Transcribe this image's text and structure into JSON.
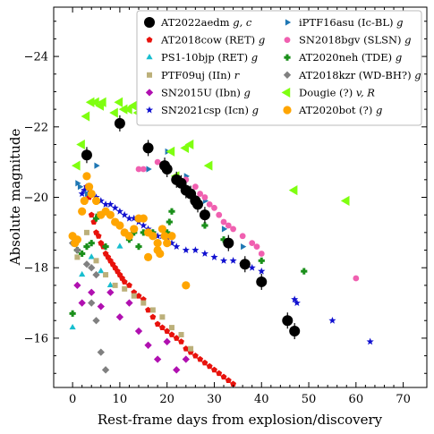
{
  "chart_data": {
    "type": "scatter",
    "title": "",
    "xlabel": "Rest-frame days from explosion/discovery",
    "ylabel": "Absolute magnitude",
    "xlim": [
      -4,
      75
    ],
    "ylim": [
      -14.6,
      -25.4
    ],
    "y_inverted": true,
    "xticks": [
      "0",
      "10",
      "20",
      "30",
      "40",
      "50",
      "60",
      "70"
    ],
    "yticks": [
      "−16",
      "−18",
      "−20",
      "−22",
      "−24"
    ],
    "grid": false,
    "legend_position": "top-right",
    "series": [
      {
        "name": "AT2018cow (RET) g",
        "color": "#e8120c",
        "marker": "pentagon",
        "points": [
          [
            3,
            -20.3
          ],
          [
            3.5,
            -20.0
          ],
          [
            4,
            -19.5
          ],
          [
            4.5,
            -19.3
          ],
          [
            5,
            -19.0
          ],
          [
            5.5,
            -18.9
          ],
          [
            6,
            -18.7
          ],
          [
            6.5,
            -18.6
          ],
          [
            7,
            -18.4
          ],
          [
            7.5,
            -18.3
          ],
          [
            8,
            -18.2
          ],
          [
            8.5,
            -18.1
          ],
          [
            9,
            -18.0
          ],
          [
            9.5,
            -17.9
          ],
          [
            10,
            -17.8
          ],
          [
            10.5,
            -17.7
          ],
          [
            11,
            -17.6
          ],
          [
            12,
            -17.5
          ],
          [
            13,
            -17.3
          ],
          [
            14,
            -17.2
          ],
          [
            15,
            -17.1
          ],
          [
            16,
            -16.8
          ],
          [
            17,
            -16.6
          ],
          [
            18,
            -16.4
          ],
          [
            19,
            -16.3
          ],
          [
            20,
            -16.2
          ],
          [
            21,
            -16.1
          ],
          [
            22,
            -16.0
          ],
          [
            23,
            -15.9
          ],
          [
            24,
            -15.7
          ],
          [
            25,
            -15.6
          ],
          [
            26,
            -15.5
          ],
          [
            27,
            -15.4
          ],
          [
            28,
            -15.3
          ],
          [
            29,
            -15.2
          ],
          [
            30,
            -15.1
          ],
          [
            31,
            -15.0
          ],
          [
            32,
            -14.9
          ],
          [
            33,
            -14.8
          ],
          [
            34,
            -14.7
          ]
        ]
      },
      {
        "name": "PS1-10bjp (RET) g",
        "color": "#17becf",
        "marker": "triangle-up",
        "points": [
          [
            0,
            -16.3
          ],
          [
            2,
            -17.8
          ],
          [
            4,
            -18.3
          ],
          [
            6,
            -17.9
          ],
          [
            8,
            -17.5
          ],
          [
            10,
            -18.6
          ]
        ]
      },
      {
        "name": "PTF09uj (IIn) r",
        "color": "#bcb07a",
        "marker": "square",
        "points": [
          [
            1,
            -18.3
          ],
          [
            3,
            -19.0
          ],
          [
            5,
            -18.2
          ],
          [
            7,
            -17.8
          ],
          [
            9,
            -17.5
          ],
          [
            11,
            -17.4
          ],
          [
            13,
            -17.2
          ],
          [
            15,
            -17.0
          ],
          [
            17,
            -16.8
          ],
          [
            19,
            -16.6
          ],
          [
            21,
            -16.3
          ],
          [
            23,
            -16.1
          ],
          [
            25,
            -15.7
          ]
        ]
      },
      {
        "name": "SN2015U (Ibn) g",
        "color": "#b010b0",
        "marker": "diamond",
        "points": [
          [
            1,
            -17.5
          ],
          [
            2,
            -17.0
          ],
          [
            4,
            -17.3
          ],
          [
            6,
            -16.9
          ],
          [
            8,
            -17.3
          ],
          [
            10,
            -16.6
          ],
          [
            12,
            -17.0
          ],
          [
            14,
            -16.2
          ],
          [
            16,
            -15.8
          ],
          [
            18,
            -15.4
          ],
          [
            20,
            -15.9
          ],
          [
            22,
            -15.1
          ],
          [
            24,
            -15.4
          ]
        ]
      },
      {
        "name": "SN2021csp (Icn) g",
        "color": "#1010d0",
        "marker": "star",
        "points": [
          [
            2,
            -20.1
          ],
          [
            2.5,
            -20.2
          ],
          [
            3,
            -20.3
          ],
          [
            3.5,
            -20.2
          ],
          [
            4,
            -20.1
          ],
          [
            5,
            -20.0
          ],
          [
            6,
            -19.9
          ],
          [
            7,
            -19.8
          ],
          [
            8,
            -19.8
          ],
          [
            9,
            -19.7
          ],
          [
            10,
            -19.6
          ],
          [
            11,
            -19.5
          ],
          [
            12,
            -19.4
          ],
          [
            13,
            -19.4
          ],
          [
            14,
            -19.3
          ],
          [
            15,
            -19.2
          ],
          [
            16,
            -19.1
          ],
          [
            17,
            -19.0
          ],
          [
            18,
            -18.9
          ],
          [
            19,
            -18.9
          ],
          [
            20,
            -18.8
          ],
          [
            21,
            -18.7
          ],
          [
            22,
            -18.6
          ],
          [
            24,
            -18.5
          ],
          [
            26,
            -18.5
          ],
          [
            28,
            -18.4
          ],
          [
            30,
            -18.3
          ],
          [
            32,
            -18.2
          ],
          [
            34,
            -18.2
          ],
          [
            36,
            -18.1
          ],
          [
            38,
            -18.0
          ],
          [
            40,
            -17.9
          ],
          [
            47,
            -17.1
          ],
          [
            47.5,
            -17.0
          ],
          [
            55,
            -16.5
          ],
          [
            63,
            -15.9
          ]
        ]
      },
      {
        "name": "iPTF16asu (Ic-BL) g",
        "color": "#1f77b4",
        "marker": "triangle-right",
        "points": [
          [
            1,
            -20.4
          ],
          [
            1.5,
            -20.3
          ],
          [
            3,
            -20.1
          ],
          [
            5,
            -20.9
          ],
          [
            8,
            -19.5
          ],
          [
            16,
            -20.8
          ],
          [
            20,
            -21.3
          ],
          [
            24,
            -20.6
          ],
          [
            28,
            -19.9
          ],
          [
            32,
            -19.1
          ],
          [
            36,
            -18.6
          ]
        ]
      },
      {
        "name": "SN2018bgv (SLSN) g",
        "color": "#f060b0",
        "marker": "circle",
        "points": [
          [
            14,
            -20.8
          ],
          [
            15,
            -20.8
          ],
          [
            18,
            -21.0
          ],
          [
            19,
            -20.9
          ],
          [
            20,
            -20.8
          ],
          [
            22,
            -20.6
          ],
          [
            24,
            -20.5
          ],
          [
            26,
            -20.3
          ],
          [
            27,
            -20.1
          ],
          [
            28,
            -20.0
          ],
          [
            29,
            -19.8
          ],
          [
            30,
            -19.7
          ],
          [
            31,
            -19.5
          ],
          [
            32,
            -19.3
          ],
          [
            33,
            -19.2
          ],
          [
            34,
            -19.1
          ],
          [
            36,
            -18.9
          ],
          [
            38,
            -18.7
          ],
          [
            39,
            -18.6
          ],
          [
            40,
            -18.4
          ],
          [
            60,
            -17.7
          ]
        ]
      },
      {
        "name": "AT2020neh (TDE) g",
        "color": "#1a8f1a",
        "marker": "plus",
        "points": [
          [
            0,
            -16.7
          ],
          [
            1,
            -18.5
          ],
          [
            2,
            -18.4
          ],
          [
            3,
            -18.6
          ],
          [
            4,
            -18.7
          ],
          [
            5,
            -19.4
          ],
          [
            5.5,
            -19.5
          ],
          [
            7,
            -18.6
          ],
          [
            12,
            -18.8
          ],
          [
            13,
            -19.0
          ],
          [
            14,
            -18.6
          ],
          [
            15,
            -19.0
          ],
          [
            17,
            -19.0
          ],
          [
            20,
            -19.0
          ],
          [
            20.5,
            -19.3
          ],
          [
            21,
            -19.6
          ],
          [
            28,
            -19.2
          ],
          [
            32,
            -18.8
          ],
          [
            33,
            -18.7
          ],
          [
            40,
            -18.2
          ],
          [
            49,
            -17.9
          ]
        ]
      },
      {
        "name": "AT2018kzr (WD-BH?) g",
        "color": "#808080",
        "marker": "diamond",
        "points": [
          [
            0,
            -18.7
          ],
          [
            1,
            -18.5
          ],
          [
            3,
            -18.1
          ],
          [
            4,
            -18.0
          ],
          [
            5,
            -17.8
          ],
          [
            4,
            -17.0
          ],
          [
            5,
            -16.5
          ],
          [
            6,
            -15.6
          ],
          [
            7,
            -15.1
          ]
        ]
      },
      {
        "name": "Dougie (?) v, R",
        "color": "#7fff10",
        "marker": "triangle-left",
        "points": [
          [
            1,
            -20.9
          ],
          [
            2,
            -21.5
          ],
          [
            3,
            -22.3
          ],
          [
            4,
            -22.7
          ],
          [
            5,
            -22.7
          ],
          [
            6,
            -22.6
          ],
          [
            6.5,
            -22.7
          ],
          [
            9,
            -22.4
          ],
          [
            10,
            -22.7
          ],
          [
            11,
            -22.5
          ],
          [
            12,
            -22.5
          ],
          [
            13,
            -22.6
          ],
          [
            14,
            -22.4
          ],
          [
            15,
            -22.2
          ],
          [
            16,
            -22.3
          ],
          [
            19,
            -22.6
          ],
          [
            20,
            -22.2
          ],
          [
            21,
            -21.3
          ],
          [
            22,
            -20.6
          ],
          [
            24,
            -21.4
          ],
          [
            25,
            -21.5
          ],
          [
            29,
            -20.9
          ],
          [
            47,
            -20.2
          ],
          [
            58,
            -19.9
          ]
        ]
      },
      {
        "name": "AT2020bot (?) g",
        "color": "#ffa500",
        "marker": "circle",
        "points": [
          [
            0,
            -18.9
          ],
          [
            0.5,
            -18.7
          ],
          [
            1,
            -18.8
          ],
          [
            2,
            -19.6
          ],
          [
            2.5,
            -19.9
          ],
          [
            3,
            -20.6
          ],
          [
            3.5,
            -20.3
          ],
          [
            4,
            -20.1
          ],
          [
            5,
            -19.9
          ],
          [
            6,
            -19.5
          ],
          [
            7,
            -19.6
          ],
          [
            8,
            -19.5
          ],
          [
            9,
            -19.3
          ],
          [
            10,
            -19.2
          ],
          [
            11,
            -19.0
          ],
          [
            12,
            -18.9
          ],
          [
            13,
            -19.1
          ],
          [
            14,
            -19.4
          ],
          [
            15,
            -19.4
          ],
          [
            16,
            -19.0
          ],
          [
            17,
            -18.9
          ],
          [
            18,
            -18.7
          ],
          [
            19,
            -19.1
          ],
          [
            19.5,
            -18.9
          ],
          [
            20,
            -18.7
          ],
          [
            21,
            -18.9
          ],
          [
            18,
            -18.5
          ],
          [
            18.5,
            -18.4
          ],
          [
            16,
            -18.3
          ],
          [
            24,
            -17.5
          ]
        ]
      },
      {
        "name": "AT2022aedm g, c",
        "color": "#000000",
        "marker": "circle-large",
        "points": [
          [
            3,
            -21.2
          ],
          [
            10,
            -22.1
          ],
          [
            16,
            -21.4
          ],
          [
            19.5,
            -20.9
          ],
          [
            20,
            -20.8
          ],
          [
            22,
            -20.5
          ],
          [
            23,
            -20.4
          ],
          [
            24,
            -20.2
          ],
          [
            25,
            -20.1
          ],
          [
            26,
            -19.9
          ],
          [
            26.5,
            -19.8
          ],
          [
            28,
            -19.5
          ],
          [
            33,
            -18.7
          ],
          [
            36.5,
            -18.1
          ],
          [
            40,
            -17.6
          ],
          [
            45.5,
            -16.5
          ],
          [
            47,
            -16.2
          ]
        ]
      }
    ],
    "legend_entries": [
      {
        "label": "AT2022aedm",
        "suffix": "g, c",
        "series": 11
      },
      {
        "label": "iPTF16asu (Ic-BL)",
        "suffix": "g",
        "series": 5
      },
      {
        "label": "AT2018cow (RET)",
        "suffix": "g",
        "series": 0
      },
      {
        "label": "SN2018bgv (SLSN)",
        "suffix": "g",
        "series": 6
      },
      {
        "label": "PS1-10bjp (RET)",
        "suffix": "g",
        "series": 1
      },
      {
        "label": "AT2020neh (TDE)",
        "suffix": "g",
        "series": 7
      },
      {
        "label": "PTF09uj (IIn)",
        "suffix": "r",
        "series": 2
      },
      {
        "label": "AT2018kzr (WD-BH?)",
        "suffix": "g",
        "series": 8
      },
      {
        "label": "SN2015U (Ibn)",
        "suffix": "g",
        "series": 3
      },
      {
        "label": "Dougie (?)",
        "suffix": "v, R",
        "series": 9
      },
      {
        "label": "SN2021csp (Icn)",
        "suffix": "g",
        "series": 4
      },
      {
        "label": "AT2020bot (?)",
        "suffix": "g",
        "series": 10
      }
    ]
  }
}
